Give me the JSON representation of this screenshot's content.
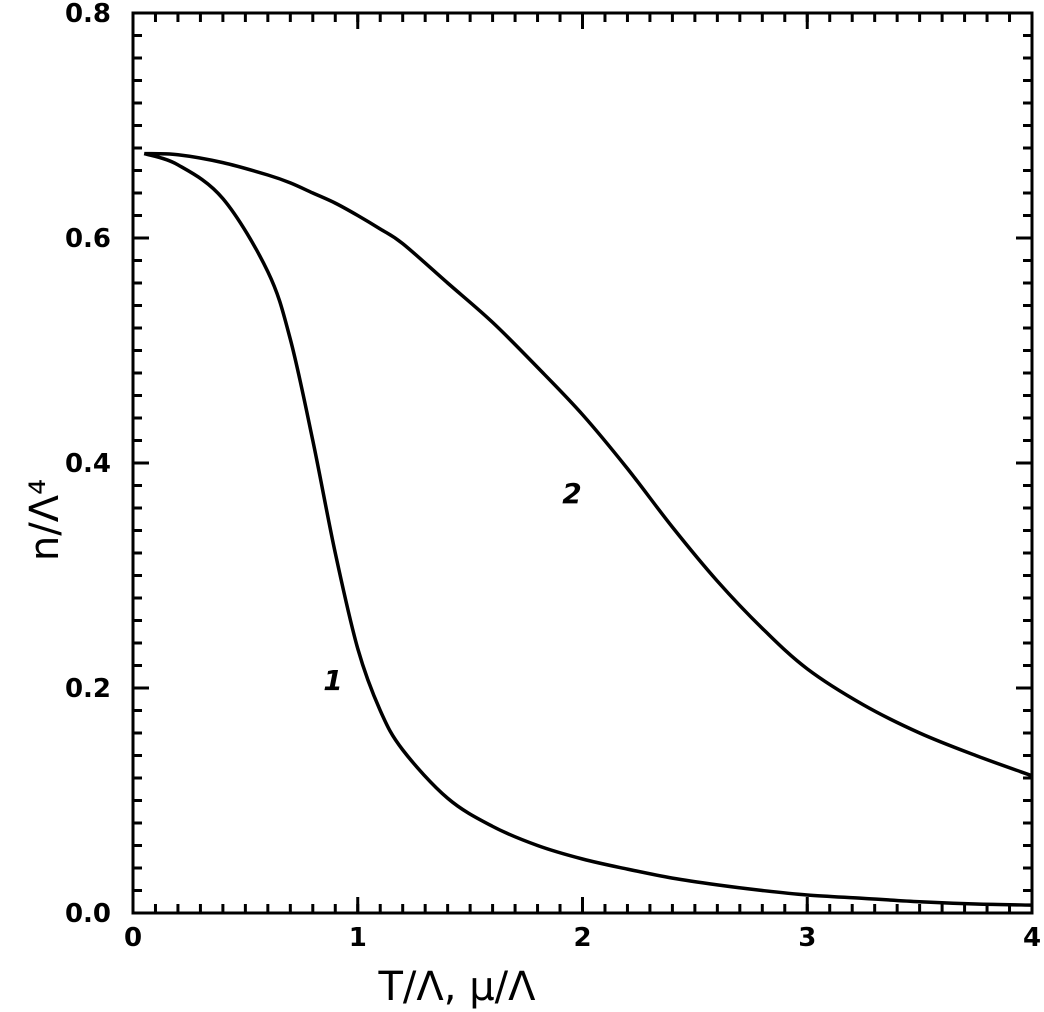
{
  "chart_data": {
    "type": "line",
    "xlabel": "T/Λ,  μ/Λ",
    "ylabel": "n/Λ⁴",
    "x": [
      0.05,
      0.2,
      0.4,
      0.6,
      0.7,
      0.8,
      0.9,
      1.0,
      1.1,
      1.2,
      1.4,
      1.6,
      1.8,
      2.0,
      2.2,
      2.4,
      2.6,
      2.8,
      3.0,
      3.25,
      3.5,
      3.75,
      4.0
    ],
    "series": [
      {
        "name": "1",
        "color": "#000000",
        "values": [
          0.675,
          0.665,
          0.635,
          0.57,
          0.51,
          0.42,
          0.32,
          0.235,
          0.18,
          0.145,
          0.102,
          0.077,
          0.06,
          0.048,
          0.039,
          0.031,
          0.025,
          0.02,
          0.016,
          0.013,
          0.01,
          0.008,
          0.007
        ]
      },
      {
        "name": "2",
        "color": "#000000",
        "values": [
          0.675,
          0.674,
          0.667,
          0.656,
          0.649,
          0.64,
          0.631,
          0.62,
          0.608,
          0.595,
          0.56,
          0.525,
          0.485,
          0.443,
          0.395,
          0.343,
          0.295,
          0.253,
          0.217,
          0.185,
          0.16,
          0.14,
          0.122
        ]
      }
    ],
    "xlim": [
      0,
      4
    ],
    "ylim": [
      0,
      0.8
    ],
    "xticks": [
      0,
      1,
      2,
      3,
      4
    ],
    "yticks": [
      {
        "value": 0,
        "label": "0.0"
      },
      0.2,
      0.4,
      0.6,
      0.8
    ],
    "minor_xstep": 0.1,
    "minor_ystep": 0.02
  }
}
